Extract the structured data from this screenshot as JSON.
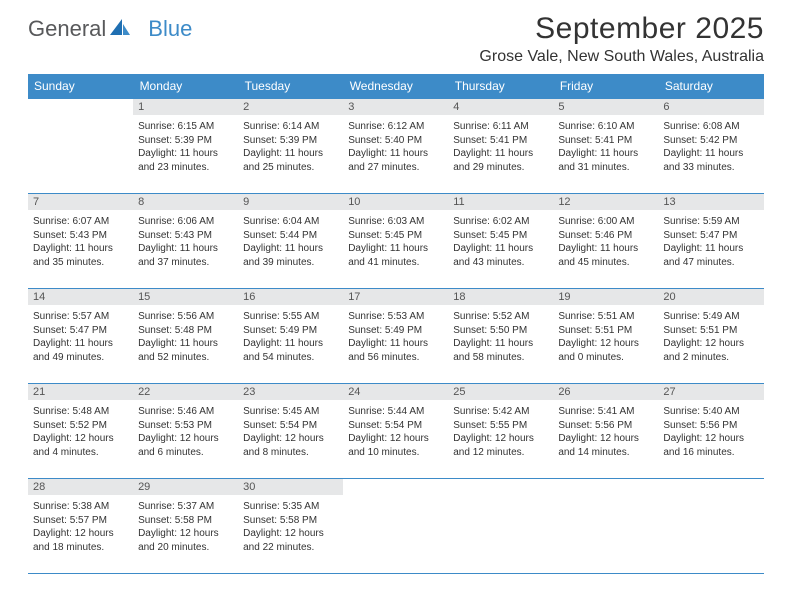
{
  "logo": {
    "general": "General",
    "blue": "Blue"
  },
  "title": "September 2025",
  "location": "Grose Vale, New South Wales, Australia",
  "columns": [
    "Sunday",
    "Monday",
    "Tuesday",
    "Wednesday",
    "Thursday",
    "Friday",
    "Saturday"
  ],
  "colors": {
    "header_bg": "#3d8bc8",
    "header_fg": "#ffffff",
    "daynum_bg": "#e6e7e8",
    "border": "#3d8bc8",
    "text": "#333333",
    "logo_gray": "#58595b",
    "logo_blue": "#3d8bc8"
  },
  "weeks": [
    [
      null,
      {
        "n": "1",
        "sr": "6:15 AM",
        "ss": "5:39 PM",
        "dl": "11 hours and 23 minutes."
      },
      {
        "n": "2",
        "sr": "6:14 AM",
        "ss": "5:39 PM",
        "dl": "11 hours and 25 minutes."
      },
      {
        "n": "3",
        "sr": "6:12 AM",
        "ss": "5:40 PM",
        "dl": "11 hours and 27 minutes."
      },
      {
        "n": "4",
        "sr": "6:11 AM",
        "ss": "5:41 PM",
        "dl": "11 hours and 29 minutes."
      },
      {
        "n": "5",
        "sr": "6:10 AM",
        "ss": "5:41 PM",
        "dl": "11 hours and 31 minutes."
      },
      {
        "n": "6",
        "sr": "6:08 AM",
        "ss": "5:42 PM",
        "dl": "11 hours and 33 minutes."
      }
    ],
    [
      {
        "n": "7",
        "sr": "6:07 AM",
        "ss": "5:43 PM",
        "dl": "11 hours and 35 minutes."
      },
      {
        "n": "8",
        "sr": "6:06 AM",
        "ss": "5:43 PM",
        "dl": "11 hours and 37 minutes."
      },
      {
        "n": "9",
        "sr": "6:04 AM",
        "ss": "5:44 PM",
        "dl": "11 hours and 39 minutes."
      },
      {
        "n": "10",
        "sr": "6:03 AM",
        "ss": "5:45 PM",
        "dl": "11 hours and 41 minutes."
      },
      {
        "n": "11",
        "sr": "6:02 AM",
        "ss": "5:45 PM",
        "dl": "11 hours and 43 minutes."
      },
      {
        "n": "12",
        "sr": "6:00 AM",
        "ss": "5:46 PM",
        "dl": "11 hours and 45 minutes."
      },
      {
        "n": "13",
        "sr": "5:59 AM",
        "ss": "5:47 PM",
        "dl": "11 hours and 47 minutes."
      }
    ],
    [
      {
        "n": "14",
        "sr": "5:57 AM",
        "ss": "5:47 PM",
        "dl": "11 hours and 49 minutes."
      },
      {
        "n": "15",
        "sr": "5:56 AM",
        "ss": "5:48 PM",
        "dl": "11 hours and 52 minutes."
      },
      {
        "n": "16",
        "sr": "5:55 AM",
        "ss": "5:49 PM",
        "dl": "11 hours and 54 minutes."
      },
      {
        "n": "17",
        "sr": "5:53 AM",
        "ss": "5:49 PM",
        "dl": "11 hours and 56 minutes."
      },
      {
        "n": "18",
        "sr": "5:52 AM",
        "ss": "5:50 PM",
        "dl": "11 hours and 58 minutes."
      },
      {
        "n": "19",
        "sr": "5:51 AM",
        "ss": "5:51 PM",
        "dl": "12 hours and 0 minutes."
      },
      {
        "n": "20",
        "sr": "5:49 AM",
        "ss": "5:51 PM",
        "dl": "12 hours and 2 minutes."
      }
    ],
    [
      {
        "n": "21",
        "sr": "5:48 AM",
        "ss": "5:52 PM",
        "dl": "12 hours and 4 minutes."
      },
      {
        "n": "22",
        "sr": "5:46 AM",
        "ss": "5:53 PM",
        "dl": "12 hours and 6 minutes."
      },
      {
        "n": "23",
        "sr": "5:45 AM",
        "ss": "5:54 PM",
        "dl": "12 hours and 8 minutes."
      },
      {
        "n": "24",
        "sr": "5:44 AM",
        "ss": "5:54 PM",
        "dl": "12 hours and 10 minutes."
      },
      {
        "n": "25",
        "sr": "5:42 AM",
        "ss": "5:55 PM",
        "dl": "12 hours and 12 minutes."
      },
      {
        "n": "26",
        "sr": "5:41 AM",
        "ss": "5:56 PM",
        "dl": "12 hours and 14 minutes."
      },
      {
        "n": "27",
        "sr": "5:40 AM",
        "ss": "5:56 PM",
        "dl": "12 hours and 16 minutes."
      }
    ],
    [
      {
        "n": "28",
        "sr": "5:38 AM",
        "ss": "5:57 PM",
        "dl": "12 hours and 18 minutes."
      },
      {
        "n": "29",
        "sr": "5:37 AM",
        "ss": "5:58 PM",
        "dl": "12 hours and 20 minutes."
      },
      {
        "n": "30",
        "sr": "5:35 AM",
        "ss": "5:58 PM",
        "dl": "12 hours and 22 minutes."
      },
      null,
      null,
      null,
      null
    ]
  ],
  "labels": {
    "sunrise_prefix": "Sunrise: ",
    "sunset_prefix": "Sunset: ",
    "daylight_prefix": "Daylight: "
  }
}
